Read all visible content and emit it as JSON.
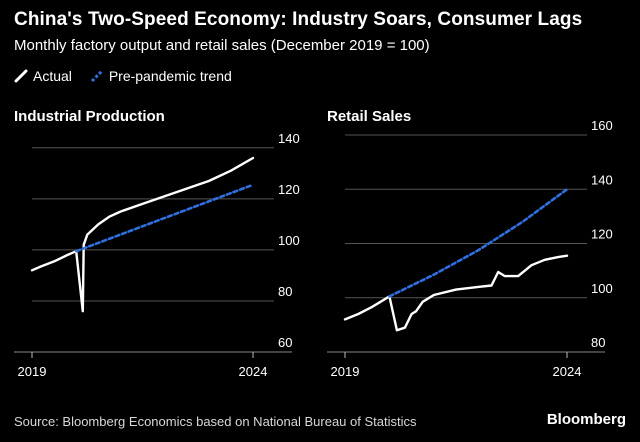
{
  "header": {
    "title": "China's Two-Speed Economy: Industry Soars, Consumer Lags",
    "subtitle": "Monthly factory output and retail sales (December 2019 = 100)"
  },
  "legend": [
    {
      "label": "Actual",
      "color": "#ffffff",
      "style": "solid",
      "icon": "slash-solid-icon"
    },
    {
      "label": "Pre-pandemic trend",
      "color": "#2f6fe0",
      "style": "dashed",
      "icon": "slash-dashed-icon"
    }
  ],
  "footer": {
    "source": "Source: Bloomberg Economics based on National Bureau of Statistics",
    "brand": "Bloomberg"
  },
  "chart_data": [
    {
      "type": "line",
      "title": "Industrial Production",
      "xlim": [
        2019,
        2024
      ],
      "x_ticks": [
        {
          "value": 2019,
          "label": "2019"
        },
        {
          "value": 2024,
          "label": "2024"
        }
      ],
      "ylim": [
        60,
        145
      ],
      "y_ticks": [
        60,
        80,
        100,
        120,
        140
      ],
      "series": [
        {
          "name": "Actual",
          "color": "#ffffff",
          "style": "solid",
          "x": [
            2019.0,
            2019.2,
            2019.5,
            2019.8,
            2020.0,
            2020.15,
            2020.17,
            2020.25,
            2020.5,
            2020.75,
            2021.0,
            2021.5,
            2022.0,
            2022.5,
            2023.0,
            2023.5,
            2024.0
          ],
          "y": [
            92,
            93.5,
            95.5,
            98,
            99.5,
            76,
            102,
            106,
            110,
            113,
            115,
            118,
            121,
            124,
            127,
            131,
            136
          ]
        },
        {
          "name": "Pre-pandemic trend",
          "color": "#2f6fe0",
          "style": "dashed",
          "x": [
            2020.0,
            2021.0,
            2022.0,
            2023.0,
            2024.0
          ],
          "y": [
            99.5,
            106,
            112.5,
            119,
            125.5
          ]
        }
      ]
    },
    {
      "type": "line",
      "title": "Retail Sales",
      "xlim": [
        2019,
        2024
      ],
      "x_ticks": [
        {
          "value": 2019,
          "label": "2019"
        },
        {
          "value": 2024,
          "label": "2024"
        }
      ],
      "ylim": [
        80,
        160
      ],
      "y_ticks": [
        80,
        100,
        120,
        140,
        160
      ],
      "series": [
        {
          "name": "Actual",
          "color": "#ffffff",
          "style": "solid",
          "x": [
            2019.0,
            2019.3,
            2019.6,
            2019.8,
            2020.0,
            2020.17,
            2020.35,
            2020.5,
            2020.6,
            2020.75,
            2021.0,
            2021.5,
            2022.0,
            2022.3,
            2022.45,
            2022.6,
            2022.9,
            2023.2,
            2023.5,
            2023.8,
            2024.0
          ],
          "y": [
            92,
            94,
            96.5,
            98.5,
            100.5,
            88,
            89,
            94,
            95,
            98.5,
            101,
            103,
            104,
            104.5,
            109.5,
            108,
            108,
            112,
            114,
            115,
            115.5
          ]
        },
        {
          "name": "Pre-pandemic trend",
          "color": "#2f6fe0",
          "style": "dashed",
          "x": [
            2020.0,
            2021.0,
            2022.0,
            2023.0,
            2024.0
          ],
          "y": [
            100.5,
            108.5,
            117.5,
            128,
            140
          ]
        }
      ]
    }
  ]
}
